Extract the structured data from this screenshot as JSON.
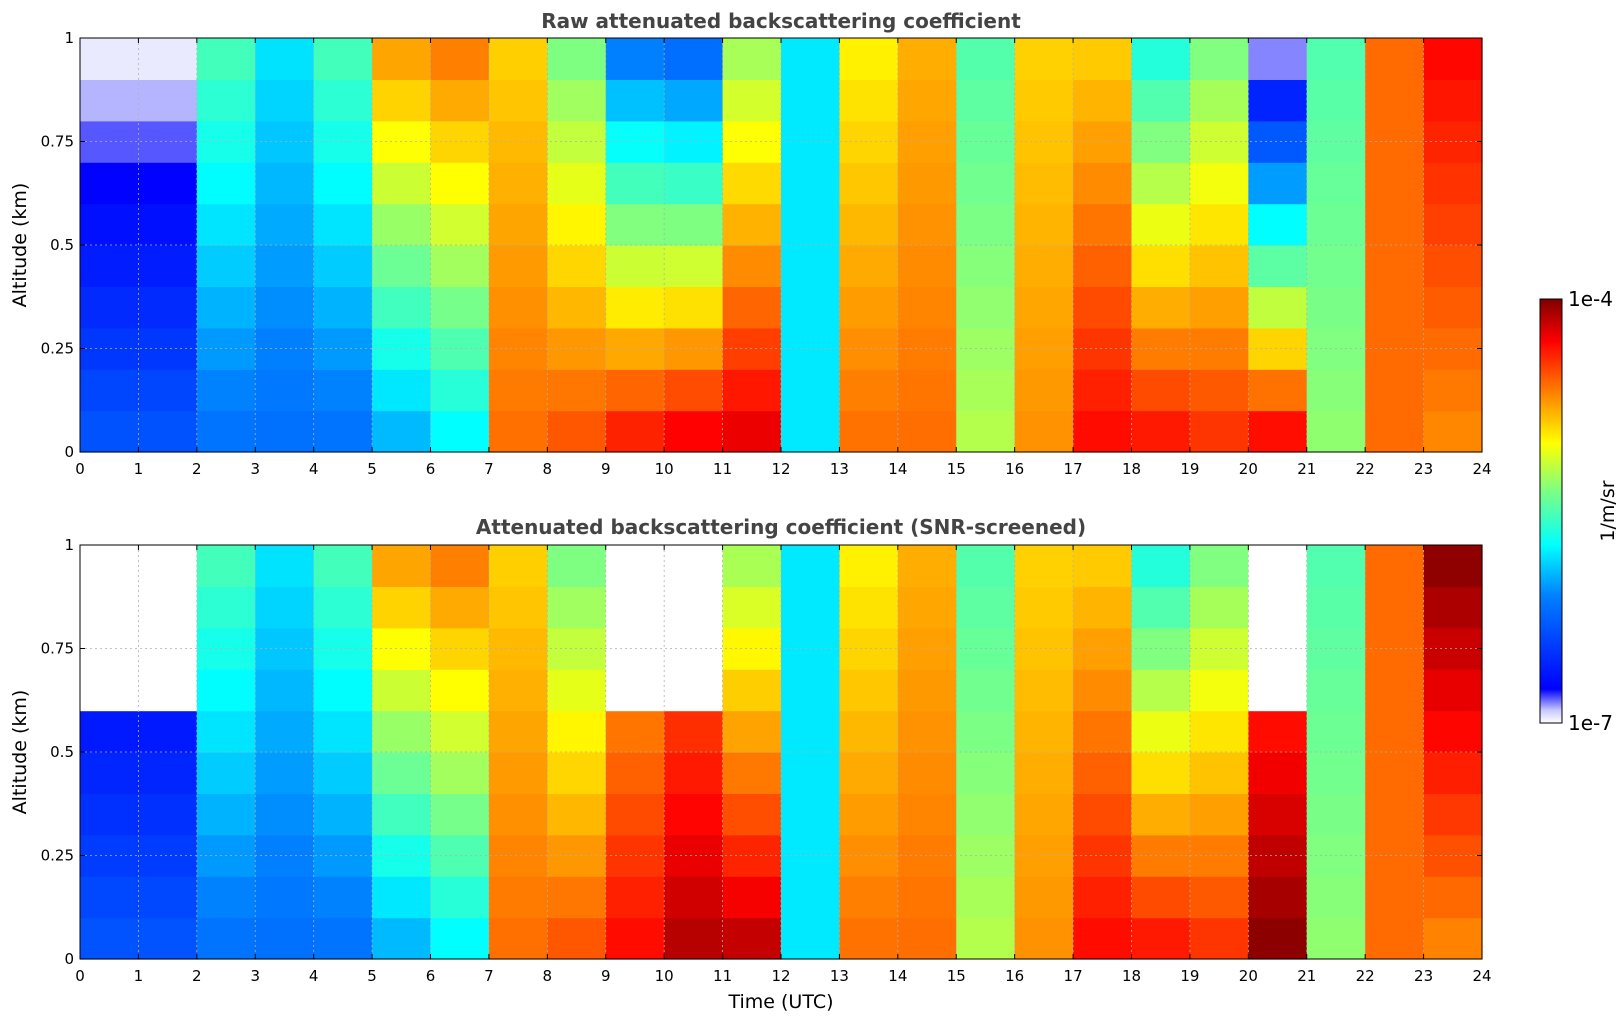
{
  "figure": {
    "colorbar": {
      "label": "1/m/sr",
      "max_label": "1e-4",
      "min_label": "1e-7",
      "range": [
        1e-07,
        0.0001
      ],
      "scale": "log",
      "colormap": "jet (white/lavender at low end)"
    },
    "xlabel": "Time (UTC)"
  },
  "chart_data": [
    {
      "type": "heatmap",
      "title": "Raw attenuated backscattering coefficient",
      "xlabel": "",
      "ylabel": "Altitude (km)",
      "xlim": [
        0,
        24
      ],
      "ylim": [
        0,
        1
      ],
      "xticks": [
        "0",
        "1",
        "2",
        "3",
        "4",
        "5",
        "6",
        "7",
        "8",
        "9",
        "10",
        "11",
        "12",
        "13",
        "14",
        "15",
        "16",
        "17",
        "18",
        "19",
        "20",
        "21",
        "22",
        "23",
        "24"
      ],
      "yticks": [
        "0",
        "0.25",
        "0.5",
        "0.75",
        "1"
      ],
      "grid": true,
      "value_scale": "log10 backscatter (1/m/sr), approximate",
      "approx_column_profile": {
        "time_utc": [
          0.5,
          1.5,
          2.5,
          3.5,
          4.5,
          5.5,
          6.5,
          7.5,
          8.5,
          9.5,
          10.5,
          11.5,
          12.5,
          13.5,
          14.5,
          15.5,
          16.5,
          17.5,
          18.5,
          19.5,
          20.5,
          21.5,
          22.5,
          23.5
        ],
        "near_surface_log10": [
          -6.3,
          -6.3,
          -6.2,
          -6.2,
          -6.2,
          -6.0,
          -5.8,
          -4.6,
          -4.5,
          -4.3,
          -4.2,
          -4.2,
          -5.8,
          -4.6,
          -4.6,
          -5.2,
          -4.7,
          -4.3,
          -4.3,
          -4.4,
          -4.2,
          -5.3,
          -4.6,
          -4.7
        ],
        "top_1km_log10": [
          -7.0,
          -7.0,
          -5.5,
          -5.8,
          -5.5,
          -4.7,
          -4.6,
          -4.9,
          -5.4,
          -6.2,
          -6.3,
          -5.3,
          -5.8,
          -5.0,
          -4.8,
          -5.5,
          -4.9,
          -4.9,
          -5.7,
          -5.4,
          -7.0,
          -5.5,
          -4.6,
          -4.3
        ]
      }
    },
    {
      "type": "heatmap",
      "title": "Attenuated backscattering coefficient (SNR-screened)",
      "xlabel": "Time (UTC)",
      "ylabel": "Altitude (km)",
      "xlim": [
        0,
        24
      ],
      "ylim": [
        0,
        1
      ],
      "xticks": [
        "0",
        "1",
        "2",
        "3",
        "4",
        "5",
        "6",
        "7",
        "8",
        "9",
        "10",
        "11",
        "12",
        "13",
        "14",
        "15",
        "16",
        "17",
        "18",
        "19",
        "20",
        "21",
        "22",
        "23",
        "24"
      ],
      "yticks": [
        "0",
        "0.25",
        "0.5",
        "0.75",
        "1"
      ],
      "grid": true,
      "value_scale": "log10 backscatter (1/m/sr), approximate; low-SNR pixels removed (white), saturated pixels black",
      "approx_column_profile": {
        "time_utc": [
          0.5,
          1.5,
          2.5,
          3.5,
          4.5,
          5.5,
          6.5,
          7.5,
          8.5,
          9.5,
          10.5,
          11.5,
          12.5,
          13.5,
          14.5,
          15.5,
          16.5,
          17.5,
          18.5,
          19.5,
          20.5,
          21.5,
          22.5,
          23.5
        ],
        "near_surface_log10": [
          -6.3,
          -6.3,
          -6.2,
          -6.2,
          -6.2,
          -6.0,
          -5.8,
          -4.6,
          -4.5,
          -4.3,
          -4.1,
          -4.1,
          -5.8,
          -4.6,
          -4.6,
          -5.2,
          -4.7,
          -4.3,
          -4.3,
          -4.4,
          -4.0,
          -5.3,
          -4.6,
          -4.7
        ],
        "top_1km_log10": [
          null,
          null,
          -5.5,
          -5.8,
          -5.5,
          -4.7,
          -4.6,
          -4.9,
          -5.4,
          null,
          null,
          -5.3,
          -5.8,
          -5.0,
          -4.8,
          -5.5,
          -4.9,
          -4.9,
          -5.7,
          -5.4,
          null,
          -5.5,
          -4.6,
          -4.0
        ]
      }
    }
  ]
}
